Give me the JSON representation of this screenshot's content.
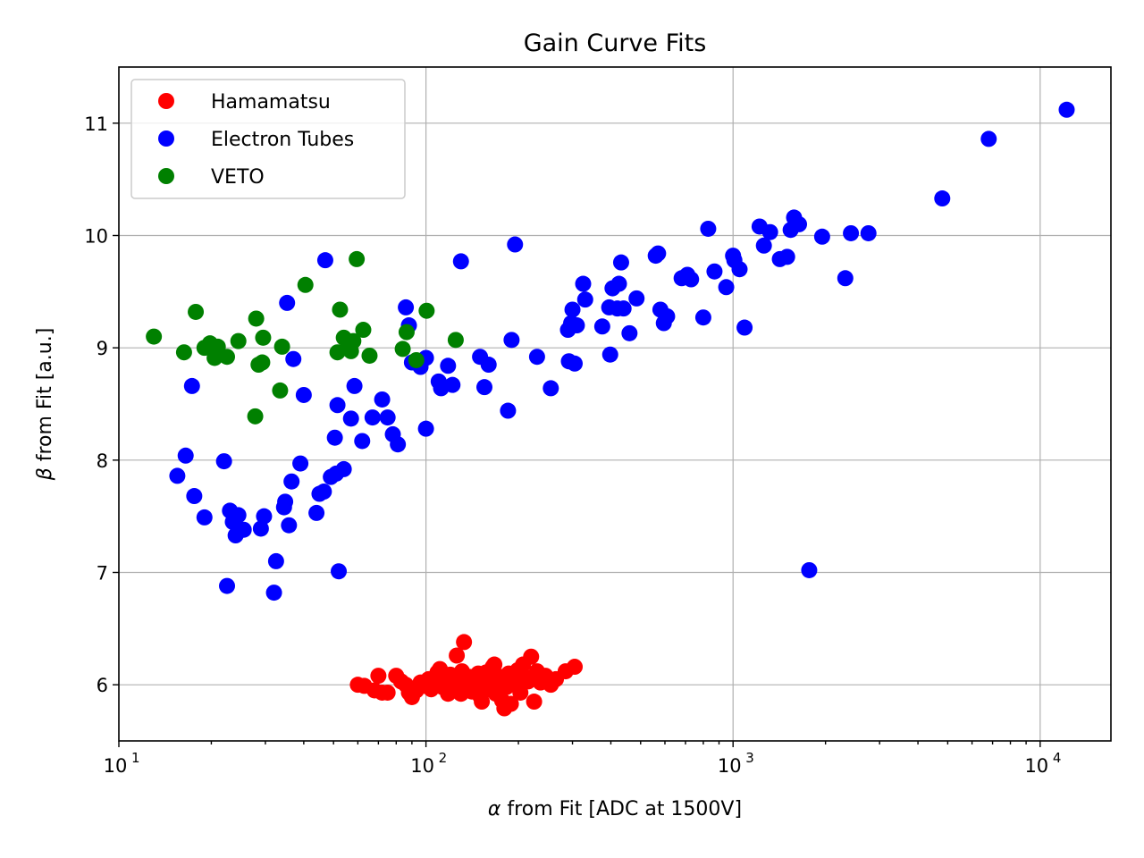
{
  "chart_data": {
    "type": "scatter",
    "title": "Gain Curve Fits",
    "xlabel_var": "α",
    "xlabel_rest": " from Fit [ADC at 1500V]",
    "ylabel_var": "β",
    "ylabel_rest": " from Fit [a.u.]",
    "xscale": "log",
    "xlim": [
      10,
      17000
    ],
    "ylim": [
      5.5,
      11.5
    ],
    "x_ticks": [
      {
        "base": "10",
        "exp": "1"
      },
      {
        "base": "10",
        "exp": "2"
      },
      {
        "base": "10",
        "exp": "3"
      },
      {
        "base": "10",
        "exp": "4"
      }
    ],
    "y_ticks": [
      "6",
      "7",
      "8",
      "9",
      "10",
      "11"
    ],
    "grid": true,
    "legend_position": "upper-left",
    "series": [
      {
        "name": "Hamamatsu",
        "color": "#ff0000",
        "points": [
          [
            60,
            6.0
          ],
          [
            63,
            5.99
          ],
          [
            68,
            5.95
          ],
          [
            70,
            6.08
          ],
          [
            72,
            5.93
          ],
          [
            75,
            5.93
          ],
          [
            80,
            6.08
          ],
          [
            83,
            6.03
          ],
          [
            86,
            6.0
          ],
          [
            88,
            5.93
          ],
          [
            90,
            5.89
          ],
          [
            93,
            5.95
          ],
          [
            96,
            6.02
          ],
          [
            99,
            5.99
          ],
          [
            102,
            6.05
          ],
          [
            104,
            5.96
          ],
          [
            107,
            6.0
          ],
          [
            109,
            6.11
          ],
          [
            111,
            6.14
          ],
          [
            113,
            5.98
          ],
          [
            115,
            6.02
          ],
          [
            117,
            6.07
          ],
          [
            118,
            5.92
          ],
          [
            120,
            6.09
          ],
          [
            122,
            6.0
          ],
          [
            124,
            5.96
          ],
          [
            126,
            6.26
          ],
          [
            128,
            6.03
          ],
          [
            130,
            5.92
          ],
          [
            131,
            6.12
          ],
          [
            133,
            6.38
          ],
          [
            135,
            6.01
          ],
          [
            137,
            5.98
          ],
          [
            139,
            6.07
          ],
          [
            141,
            5.94
          ],
          [
            143,
            6.03
          ],
          [
            146,
            6.0
          ],
          [
            148,
            6.1
          ],
          [
            150,
            5.9
          ],
          [
            152,
            5.85
          ],
          [
            155,
            6.05
          ],
          [
            157,
            6.11
          ],
          [
            159,
            5.96
          ],
          [
            162,
            6.0
          ],
          [
            165,
            6.16
          ],
          [
            167,
            6.18
          ],
          [
            169,
            5.92
          ],
          [
            172,
            6.02
          ],
          [
            175,
            6.07
          ],
          [
            177,
            5.86
          ],
          [
            180,
            5.79
          ],
          [
            183,
            5.98
          ],
          [
            186,
            6.1
          ],
          [
            189,
            5.83
          ],
          [
            192,
            6.03
          ],
          [
            196,
            6.0
          ],
          [
            199,
            6.13
          ],
          [
            203,
            5.93
          ],
          [
            207,
            6.18
          ],
          [
            210,
            6.07
          ],
          [
            215,
            6.03
          ],
          [
            220,
            6.25
          ],
          [
            225,
            5.85
          ],
          [
            230,
            6.12
          ],
          [
            236,
            6.02
          ],
          [
            245,
            6.08
          ],
          [
            255,
            6.0
          ],
          [
            265,
            6.05
          ],
          [
            285,
            6.12
          ],
          [
            305,
            6.16
          ]
        ]
      },
      {
        "name": "Electron Tubes",
        "color": "#0000ff",
        "points": [
          [
            15.5,
            7.86
          ],
          [
            16.5,
            8.04
          ],
          [
            17.3,
            8.66
          ],
          [
            17.6,
            7.68
          ],
          [
            19.0,
            7.49
          ],
          [
            22.0,
            7.99
          ],
          [
            22.5,
            6.88
          ],
          [
            23.0,
            7.55
          ],
          [
            23.5,
            7.45
          ],
          [
            24.0,
            7.33
          ],
          [
            24.5,
            7.51
          ],
          [
            25.5,
            7.38
          ],
          [
            29.0,
            7.39
          ],
          [
            29.7,
            7.5
          ],
          [
            32.0,
            6.82
          ],
          [
            32.5,
            7.1
          ],
          [
            34.5,
            7.58
          ],
          [
            34.8,
            7.63
          ],
          [
            35.3,
            9.4
          ],
          [
            35.8,
            7.42
          ],
          [
            36.5,
            7.81
          ],
          [
            37.0,
            8.9
          ],
          [
            39.0,
            7.97
          ],
          [
            40.0,
            8.58
          ],
          [
            44.0,
            7.53
          ],
          [
            45.0,
            7.7
          ],
          [
            46.5,
            7.72
          ],
          [
            47.0,
            9.78
          ],
          [
            49.0,
            7.85
          ],
          [
            50.5,
            8.2
          ],
          [
            51.0,
            7.88
          ],
          [
            51.5,
            8.49
          ],
          [
            52.0,
            7.01
          ],
          [
            54.0,
            7.92
          ],
          [
            57.0,
            8.37
          ],
          [
            58.5,
            8.66
          ],
          [
            62.0,
            8.17
          ],
          [
            67.0,
            8.38
          ],
          [
            72.0,
            8.54
          ],
          [
            75.0,
            8.38
          ],
          [
            78.0,
            8.23
          ],
          [
            81.0,
            8.14
          ],
          [
            86.0,
            9.36
          ],
          [
            88.0,
            9.2
          ],
          [
            90.0,
            8.87
          ],
          [
            96.0,
            8.83
          ],
          [
            100.0,
            8.28
          ],
          [
            100.0,
            8.91
          ],
          [
            110.0,
            8.7
          ],
          [
            112.0,
            8.64
          ],
          [
            118.0,
            8.84
          ],
          [
            122.0,
            8.67
          ],
          [
            130.0,
            9.77
          ],
          [
            150.0,
            8.92
          ],
          [
            155.0,
            8.65
          ],
          [
            160.0,
            8.85
          ],
          [
            185.0,
            8.44
          ],
          [
            190.0,
            9.07
          ],
          [
            195.0,
            9.92
          ],
          [
            230.0,
            8.92
          ],
          [
            255.0,
            8.64
          ],
          [
            290.0,
            9.16
          ],
          [
            292.0,
            8.88
          ],
          [
            297.0,
            9.22
          ],
          [
            300.0,
            9.34
          ],
          [
            305.0,
            8.86
          ],
          [
            310.0,
            9.2
          ],
          [
            325.0,
            9.57
          ],
          [
            330.0,
            9.43
          ],
          [
            375.0,
            9.19
          ],
          [
            395.0,
            9.36
          ],
          [
            398.0,
            8.94
          ],
          [
            405.0,
            9.53
          ],
          [
            420.0,
            9.35
          ],
          [
            425.0,
            9.57
          ],
          [
            432.0,
            9.76
          ],
          [
            440.0,
            9.35
          ],
          [
            460.0,
            9.13
          ],
          [
            485.0,
            9.44
          ],
          [
            560.0,
            9.82
          ],
          [
            570.0,
            9.84
          ],
          [
            580.0,
            9.34
          ],
          [
            595.0,
            9.22
          ],
          [
            610.0,
            9.28
          ],
          [
            680.0,
            9.62
          ],
          [
            710.0,
            9.65
          ],
          [
            730.0,
            9.61
          ],
          [
            800.0,
            9.27
          ],
          [
            830.0,
            10.06
          ],
          [
            870.0,
            9.68
          ],
          [
            950.0,
            9.54
          ],
          [
            1000.0,
            9.82
          ],
          [
            1010.0,
            9.78
          ],
          [
            1050.0,
            9.7
          ],
          [
            1090.0,
            9.18
          ],
          [
            1220.0,
            10.08
          ],
          [
            1260.0,
            9.91
          ],
          [
            1320.0,
            10.03
          ],
          [
            1420.0,
            9.79
          ],
          [
            1500.0,
            9.81
          ],
          [
            1540.0,
            10.05
          ],
          [
            1580.0,
            10.16
          ],
          [
            1640.0,
            10.1
          ],
          [
            1770.0,
            7.02
          ],
          [
            1950.0,
            9.99
          ],
          [
            2320.0,
            9.62
          ],
          [
            2420.0,
            10.02
          ],
          [
            2760.0,
            10.02
          ],
          [
            4800.0,
            10.33
          ],
          [
            6800.0,
            10.86
          ],
          [
            12200.0,
            11.12
          ]
        ]
      },
      {
        "name": "VETO",
        "color": "#008000",
        "points": [
          [
            13.0,
            9.1
          ],
          [
            16.3,
            8.96
          ],
          [
            17.8,
            9.32
          ],
          [
            19.0,
            9.0
          ],
          [
            19.8,
            9.04
          ],
          [
            20.5,
            8.91
          ],
          [
            21.0,
            9.01
          ],
          [
            22.5,
            8.92
          ],
          [
            24.5,
            9.06
          ],
          [
            27.8,
            8.39
          ],
          [
            28.0,
            9.26
          ],
          [
            28.5,
            8.85
          ],
          [
            29.3,
            8.87
          ],
          [
            29.5,
            9.09
          ],
          [
            33.5,
            8.62
          ],
          [
            34.0,
            9.01
          ],
          [
            40.5,
            9.56
          ],
          [
            51.5,
            8.96
          ],
          [
            52.5,
            9.34
          ],
          [
            54.0,
            9.09
          ],
          [
            55.5,
            9.06
          ],
          [
            57.0,
            8.97
          ],
          [
            58.0,
            9.06
          ],
          [
            59.5,
            9.79
          ],
          [
            62.5,
            9.16
          ],
          [
            65.5,
            8.93
          ],
          [
            84.0,
            8.99
          ],
          [
            86.5,
            9.14
          ],
          [
            93.0,
            8.89
          ],
          [
            100.5,
            9.33
          ],
          [
            125.0,
            9.07
          ]
        ]
      }
    ]
  }
}
